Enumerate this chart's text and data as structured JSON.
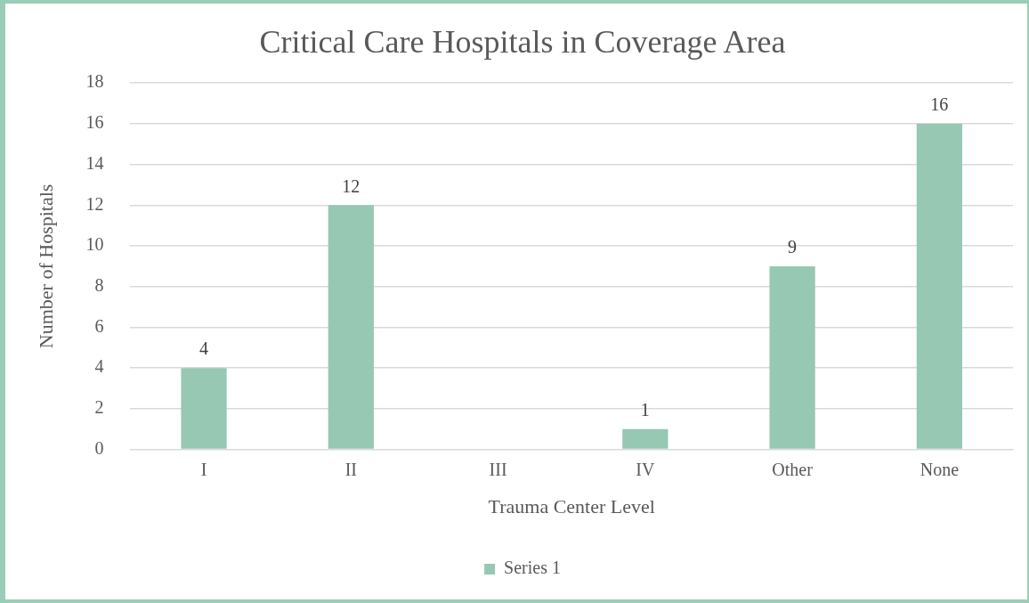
{
  "chart_data": {
    "type": "bar",
    "title": "Critical Care Hospitals in Coverage Area",
    "xlabel": "Trauma Center Level",
    "ylabel": "Number of Hospitals",
    "categories": [
      "I",
      "II",
      "III",
      "IV",
      "Other",
      "None"
    ],
    "series": [
      {
        "name": "Series 1",
        "color": "#96c8b3",
        "values": [
          4,
          12,
          null,
          1,
          9,
          16
        ],
        "value_labels": [
          "4",
          "12",
          null,
          "1",
          "9",
          "16"
        ]
      }
    ],
    "ylim": [
      0,
      18
    ],
    "yticks": [
      0,
      2,
      4,
      6,
      8,
      10,
      12,
      14,
      16,
      18
    ],
    "grid": "y",
    "legend": "bottom"
  }
}
